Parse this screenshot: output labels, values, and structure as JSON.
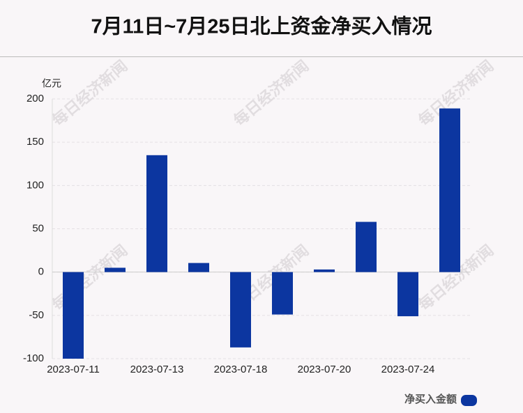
{
  "chart_data": {
    "type": "bar",
    "title": "7月11日~7月25日北上资金净买入情况",
    "y_axis_label": "亿元",
    "watermark": "每日经济新闻",
    "categories": [
      "2023-07-11",
      null,
      "2023-07-13",
      null,
      "2023-07-18",
      null,
      "2023-07-20",
      null,
      "2023-07-24",
      null
    ],
    "series": [
      {
        "name": "净买入金额",
        "color": "#0c36a0",
        "values": [
          -100,
          5,
          135,
          10.5,
          -87,
          -49,
          3,
          58,
          -51,
          189
        ]
      }
    ],
    "ylim": [
      -100,
      200
    ],
    "yticks": [
      -100,
      -50,
      0,
      50,
      100,
      150,
      200
    ],
    "grid": true,
    "legend": "bottom-right"
  }
}
